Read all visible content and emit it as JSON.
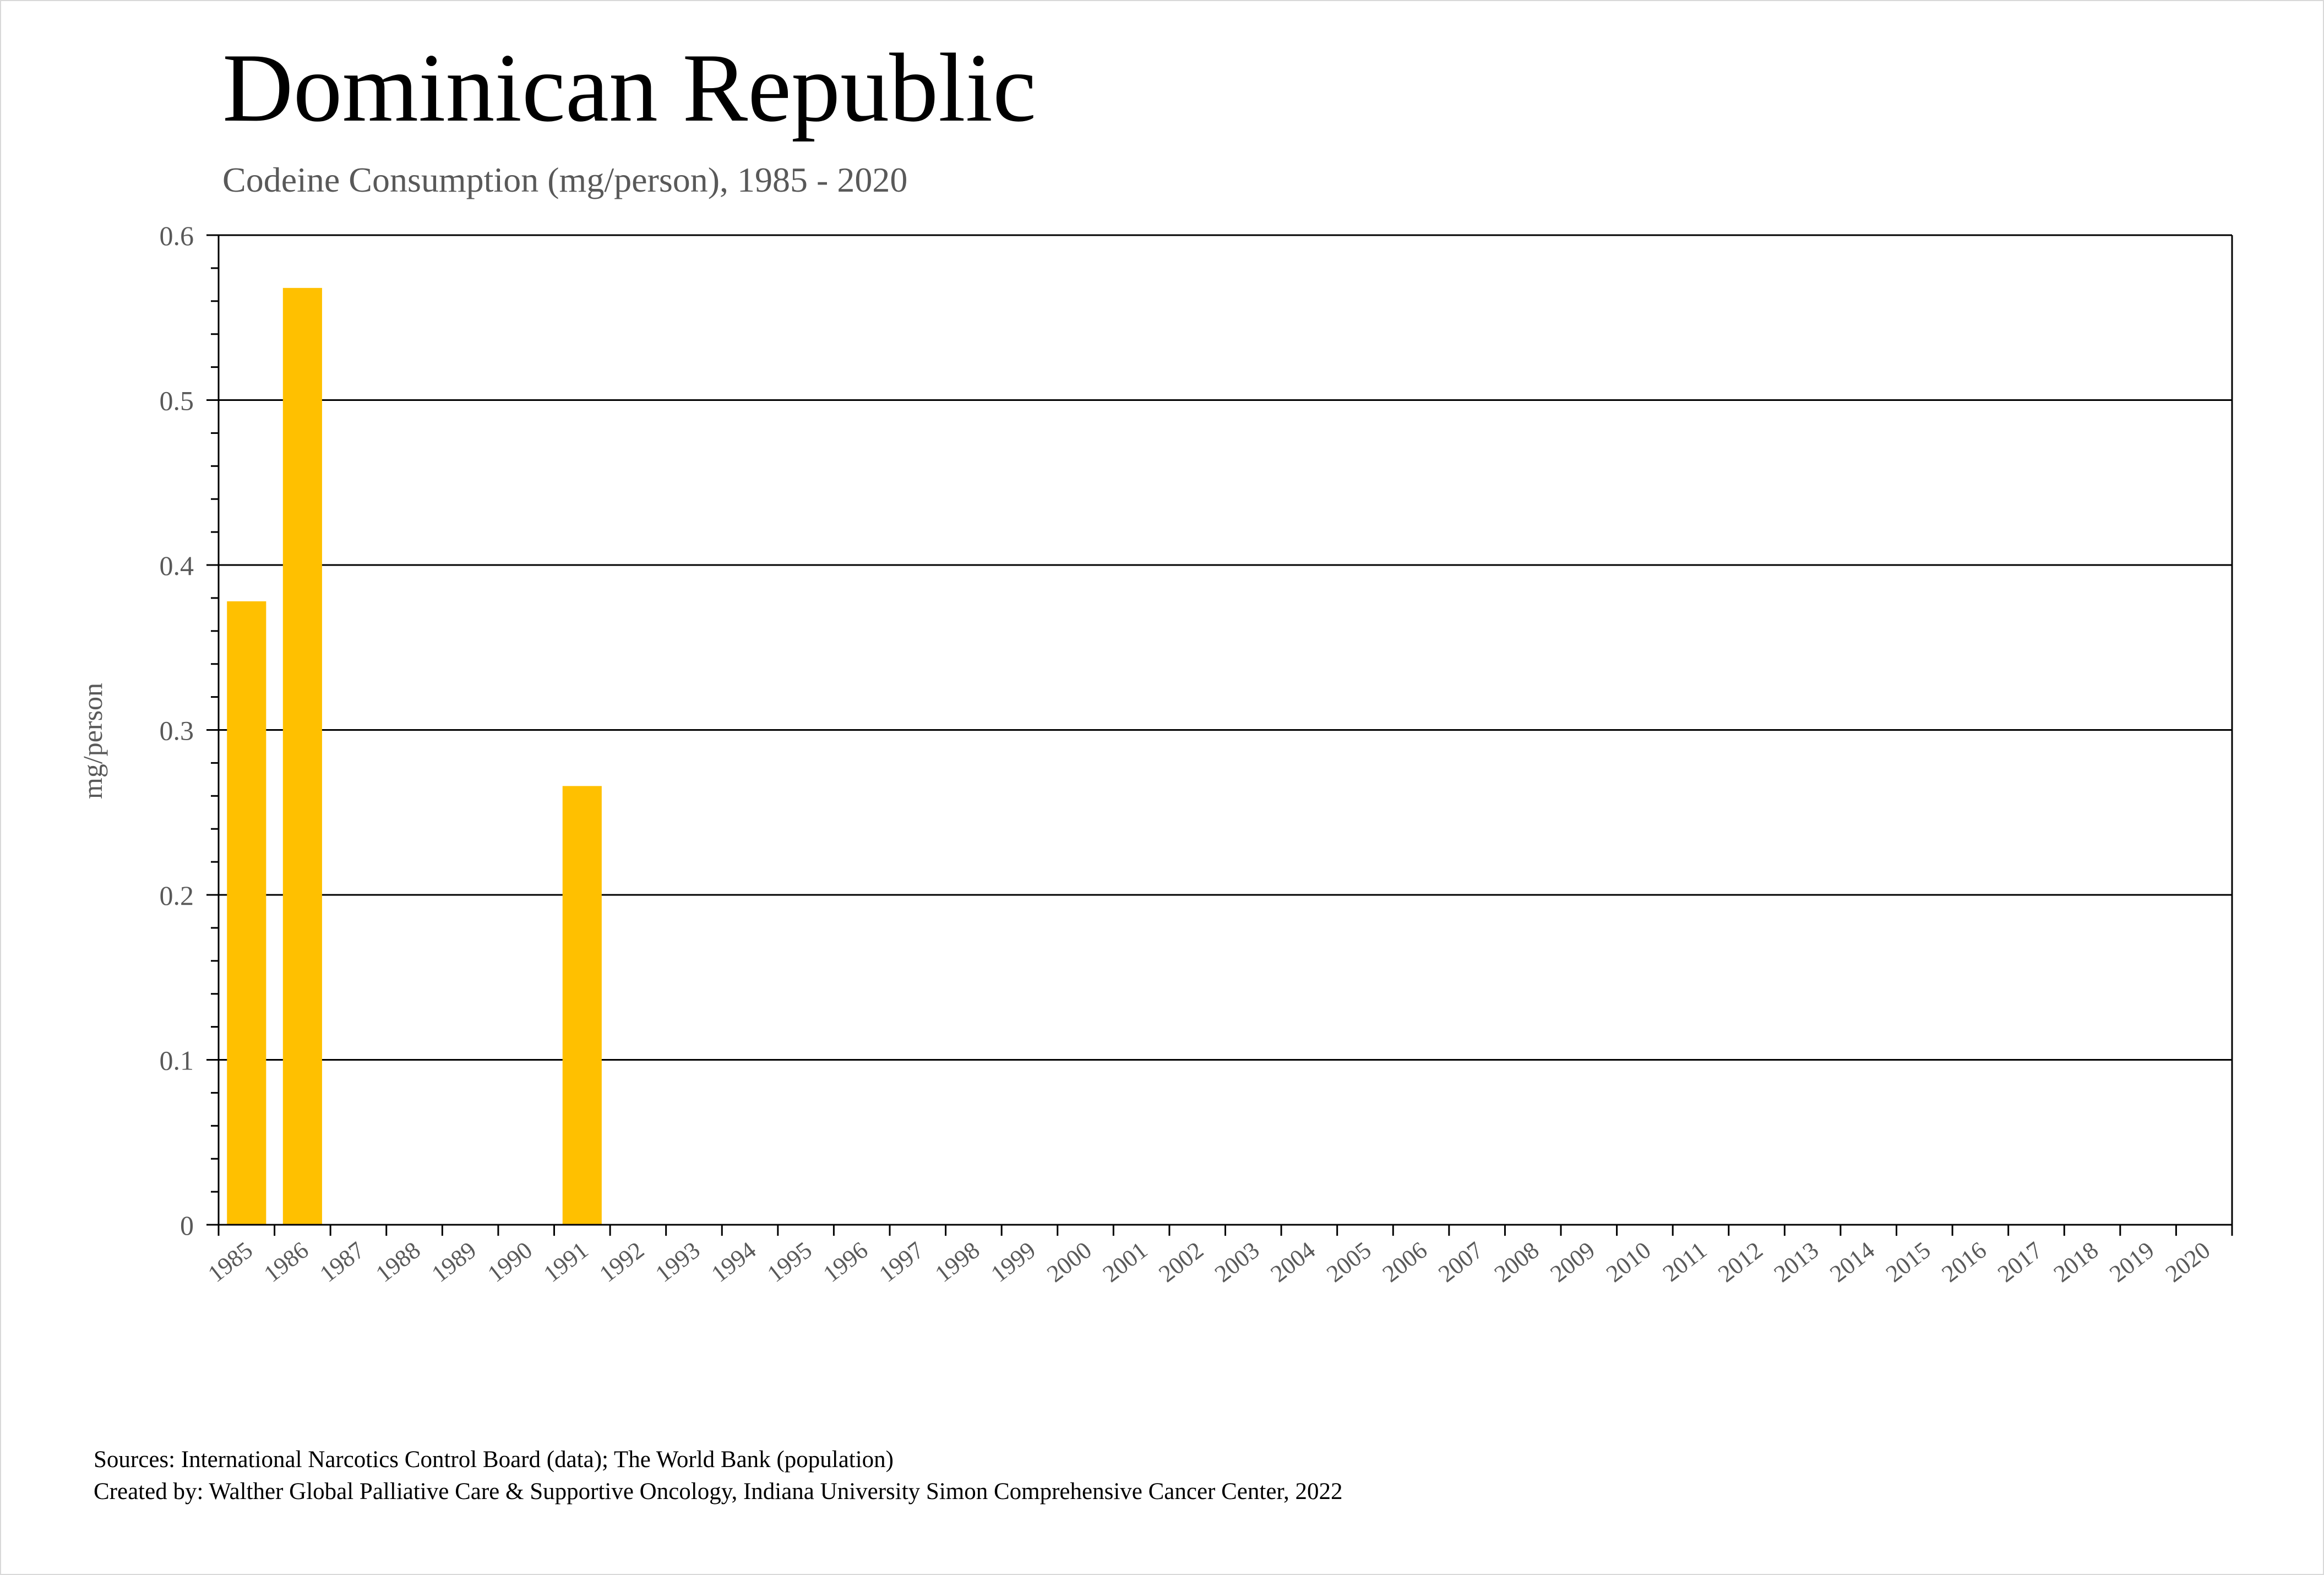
{
  "title": "Dominican Republic",
  "subtitle": "Codeine Consumption (mg/person), 1985 - 2020",
  "footer": {
    "sources": "Sources: International Narcotics Control Board (data); The World Bank (population)",
    "created_by": "Created by: Walther Global Palliative Care & Supportive Oncology, Indiana University Simon Comprehensive Cancer Center, 2022"
  },
  "colors": {
    "bar": "#FFC000",
    "gridline": "#000000",
    "tick_text": "#595959"
  },
  "chart_data": {
    "type": "bar",
    "title": "Dominican Republic",
    "subtitle": "Codeine Consumption (mg/person), 1985 - 2020",
    "xlabel": "",
    "ylabel": "mg/person",
    "ylim": [
      0,
      0.6
    ],
    "yticks": [
      0,
      0.1,
      0.2,
      0.3,
      0.4,
      0.5,
      0.6
    ],
    "ytick_labels": [
      "0",
      "0.1",
      "0.2",
      "0.3",
      "0.4",
      "0.5",
      "0.6"
    ],
    "grid": true,
    "legend": "none",
    "categories": [
      "1985",
      "1986",
      "1987",
      "1988",
      "1989",
      "1990",
      "1991",
      "1992",
      "1993",
      "1994",
      "1995",
      "1996",
      "1997",
      "1998",
      "1999",
      "2000",
      "2001",
      "2002",
      "2003",
      "2004",
      "2005",
      "2006",
      "2007",
      "2008",
      "2009",
      "2010",
      "2011",
      "2012",
      "2013",
      "2014",
      "2015",
      "2016",
      "2017",
      "2018",
      "2019",
      "2020"
    ],
    "values": [
      0.378,
      0.568,
      0,
      0,
      0,
      0,
      0.266,
      0,
      0,
      0,
      0,
      0,
      0,
      0,
      0,
      0,
      0,
      0,
      0,
      0,
      0,
      0,
      0,
      0,
      0,
      0,
      0,
      0,
      0,
      0,
      0,
      0,
      0,
      0,
      0,
      0
    ]
  }
}
